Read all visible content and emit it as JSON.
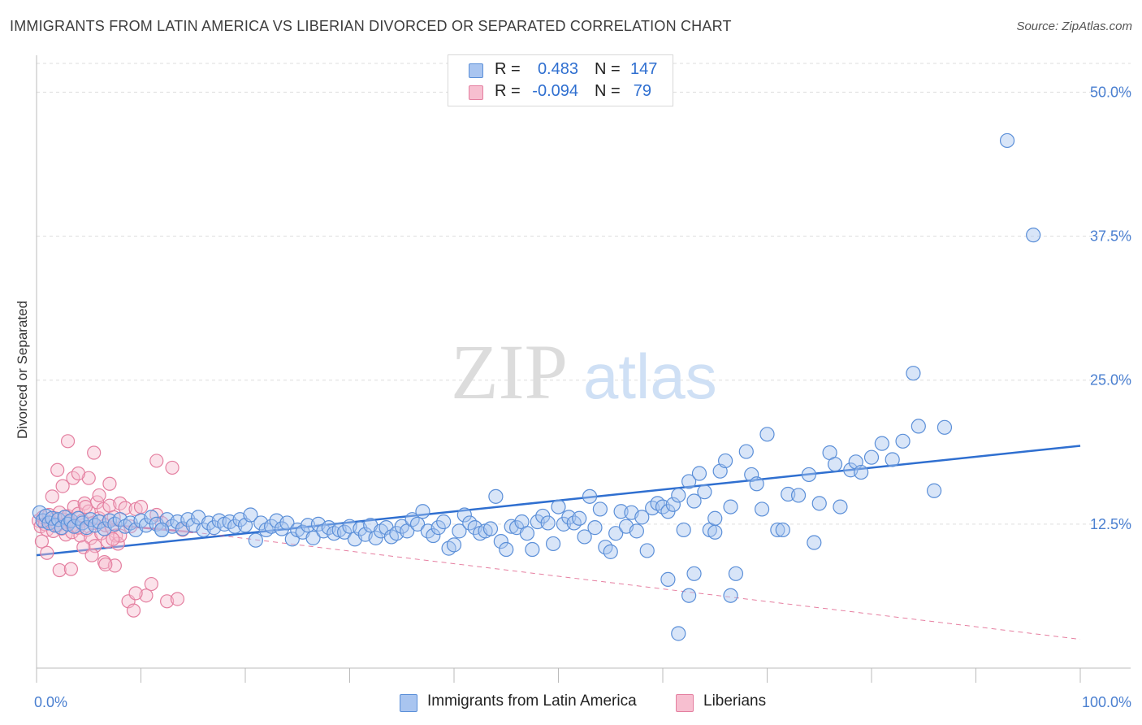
{
  "title": "IMMIGRANTS FROM LATIN AMERICA VS LIBERIAN DIVORCED OR SEPARATED CORRELATION CHART",
  "source": "Source: ZipAtlas.com",
  "watermark": {
    "zip": "ZIP",
    "atlas": "atlas"
  },
  "legend": {
    "rows": [
      {
        "r_label": "R =",
        "r_value": "0.483",
        "n_label": "N =",
        "n_value": "147",
        "color": "#a9c5f0",
        "border": "#5b8fd8"
      },
      {
        "r_label": "R =",
        "r_value": "-0.094",
        "n_label": "N =",
        "n_value": "79",
        "color": "#f7bfd0",
        "border": "#e47fa0"
      }
    ]
  },
  "bottom_legend": {
    "items": [
      {
        "label": "Immigrants from Latin America",
        "color": "#a9c5f0",
        "border": "#5b8fd8"
      },
      {
        "label": "Liberians",
        "color": "#f7bfd0",
        "border": "#e47fa0"
      }
    ]
  },
  "chart_data": {
    "type": "scatter",
    "title": "IMMIGRANTS FROM LATIN AMERICA VS LIBERIAN DIVORCED OR SEPARATED CORRELATION CHART",
    "xlabel": "",
    "ylabel": "Divorced or Separated",
    "xlim": [
      0,
      100
    ],
    "ylim": [
      0,
      52.5
    ],
    "x_ticks": [
      "0.0%",
      "100.0%"
    ],
    "y_ticks": [
      {
        "value": 12.5,
        "label": "12.5%"
      },
      {
        "value": 25.0,
        "label": "25.0%"
      },
      {
        "value": 37.5,
        "label": "37.5%"
      },
      {
        "value": 50.0,
        "label": "50.0%"
      }
    ],
    "grid": true,
    "legend_position": "top-center",
    "series": [
      {
        "name": "Immigrants from Latin America",
        "color": "#5b8fd8",
        "fill": "rgba(169,197,240,0.45)",
        "trend": {
          "x": [
            0,
            100
          ],
          "y": [
            9.8,
            19.3
          ],
          "style": "solid",
          "color": "#2f6fd0"
        },
        "points": [
          [
            0.3,
            13.5
          ],
          [
            0.6,
            12.8
          ],
          [
            0.9,
            13.2
          ],
          [
            1.2,
            12.6
          ],
          [
            1.5,
            13.0
          ],
          [
            1.8,
            12.4
          ],
          [
            2.1,
            12.9
          ],
          [
            2.4,
            12.2
          ],
          [
            2.7,
            13.1
          ],
          [
            3.0,
            12.5
          ],
          [
            3.3,
            12.8
          ],
          [
            3.6,
            12.3
          ],
          [
            4.0,
            13.0
          ],
          [
            4.4,
            12.6
          ],
          [
            4.8,
            12.2
          ],
          [
            5.2,
            12.9
          ],
          [
            5.6,
            12.4
          ],
          [
            6.0,
            12.7
          ],
          [
            6.5,
            12.1
          ],
          [
            7.0,
            12.8
          ],
          [
            7.5,
            12.5
          ],
          [
            8.0,
            12.9
          ],
          [
            8.5,
            12.3
          ],
          [
            9.0,
            12.6
          ],
          [
            9.5,
            12.0
          ],
          [
            10.0,
            12.8
          ],
          [
            10.5,
            12.4
          ],
          [
            11.0,
            13.1
          ],
          [
            11.5,
            12.5
          ],
          [
            12.0,
            12.0
          ],
          [
            12.5,
            12.9
          ],
          [
            13.0,
            12.3
          ],
          [
            13.5,
            12.7
          ],
          [
            14.0,
            12.1
          ],
          [
            14.5,
            12.9
          ],
          [
            15.0,
            12.4
          ],
          [
            15.5,
            13.1
          ],
          [
            16.0,
            12.0
          ],
          [
            16.5,
            12.6
          ],
          [
            17.0,
            12.2
          ],
          [
            17.5,
            12.8
          ],
          [
            18.0,
            12.5
          ],
          [
            18.5,
            12.7
          ],
          [
            19.0,
            12.3
          ],
          [
            19.5,
            12.9
          ],
          [
            20.0,
            12.4
          ],
          [
            20.5,
            13.3
          ],
          [
            21.0,
            11.1
          ],
          [
            21.5,
            12.6
          ],
          [
            22.0,
            12.0
          ],
          [
            22.5,
            12.3
          ],
          [
            23.0,
            12.8
          ],
          [
            23.5,
            12.1
          ],
          [
            24.0,
            12.6
          ],
          [
            24.5,
            11.2
          ],
          [
            25.0,
            12.0
          ],
          [
            25.5,
            11.8
          ],
          [
            26.0,
            12.4
          ],
          [
            26.5,
            11.3
          ],
          [
            27.0,
            12.5
          ],
          [
            27.5,
            11.9
          ],
          [
            28.0,
            12.2
          ],
          [
            28.5,
            11.7
          ],
          [
            29.0,
            12.0
          ],
          [
            29.5,
            11.8
          ],
          [
            30.0,
            12.3
          ],
          [
            30.5,
            11.2
          ],
          [
            31.0,
            12.1
          ],
          [
            31.5,
            11.6
          ],
          [
            32.0,
            12.4
          ],
          [
            32.5,
            11.3
          ],
          [
            33.0,
            11.9
          ],
          [
            33.5,
            12.2
          ],
          [
            34.0,
            11.4
          ],
          [
            34.5,
            11.7
          ],
          [
            35.0,
            12.3
          ],
          [
            35.5,
            11.9
          ],
          [
            36.0,
            12.9
          ],
          [
            36.5,
            12.5
          ],
          [
            37.0,
            13.6
          ],
          [
            37.5,
            11.9
          ],
          [
            38.0,
            11.5
          ],
          [
            38.5,
            12.2
          ],
          [
            39.0,
            12.7
          ],
          [
            39.5,
            10.4
          ],
          [
            40.0,
            10.7
          ],
          [
            40.5,
            11.9
          ],
          [
            41.0,
            13.3
          ],
          [
            41.5,
            12.6
          ],
          [
            42.0,
            12.2
          ],
          [
            42.5,
            11.7
          ],
          [
            43.0,
            11.9
          ],
          [
            43.5,
            12.1
          ],
          [
            44.0,
            14.9
          ],
          [
            44.5,
            11.0
          ],
          [
            45.0,
            10.3
          ],
          [
            45.5,
            12.3
          ],
          [
            46.0,
            12.2
          ],
          [
            46.5,
            12.7
          ],
          [
            47.0,
            11.7
          ],
          [
            47.5,
            10.3
          ],
          [
            48.0,
            12.7
          ],
          [
            48.5,
            13.2
          ],
          [
            49.0,
            12.6
          ],
          [
            49.5,
            10.8
          ],
          [
            50.0,
            14.0
          ],
          [
            50.5,
            12.5
          ],
          [
            51.0,
            13.1
          ],
          [
            51.5,
            12.6
          ],
          [
            52.0,
            13.0
          ],
          [
            52.5,
            11.4
          ],
          [
            53.0,
            14.9
          ],
          [
            53.5,
            12.2
          ],
          [
            54.0,
            13.8
          ],
          [
            54.5,
            10.5
          ],
          [
            55.0,
            10.1
          ],
          [
            55.5,
            11.7
          ],
          [
            56.0,
            13.6
          ],
          [
            56.5,
            12.3
          ],
          [
            57.0,
            13.5
          ],
          [
            57.5,
            11.9
          ],
          [
            58.0,
            13.1
          ],
          [
            58.5,
            10.2
          ],
          [
            59.0,
            13.9
          ],
          [
            59.5,
            14.3
          ],
          [
            60.0,
            14.0
          ],
          [
            60.5,
            13.6
          ],
          [
            61.0,
            14.2
          ],
          [
            61.5,
            15.0
          ],
          [
            62.0,
            12.0
          ],
          [
            62.5,
            16.2
          ],
          [
            63.0,
            14.5
          ],
          [
            63.5,
            16.9
          ],
          [
            64.0,
            15.3
          ],
          [
            64.5,
            12.0
          ],
          [
            65.0,
            13.0
          ],
          [
            65.5,
            17.1
          ],
          [
            66.0,
            18.0
          ],
          [
            66.5,
            14.0
          ],
          [
            67.0,
            8.2
          ],
          [
            68.0,
            18.8
          ],
          [
            68.5,
            16.8
          ],
          [
            69.0,
            16.0
          ],
          [
            69.5,
            13.8
          ],
          [
            70.0,
            20.3
          ],
          [
            71.0,
            12.0
          ],
          [
            72.0,
            15.1
          ],
          [
            73.0,
            15.0
          ],
          [
            74.0,
            16.8
          ],
          [
            74.5,
            10.9
          ],
          [
            75.0,
            14.3
          ],
          [
            76.0,
            18.7
          ],
          [
            76.5,
            17.7
          ],
          [
            77.0,
            14.0
          ],
          [
            78.0,
            17.2
          ],
          [
            78.5,
            17.9
          ],
          [
            79.0,
            17.0
          ],
          [
            80.0,
            18.3
          ],
          [
            81.0,
            19.5
          ],
          [
            82.0,
            18.1
          ],
          [
            83.0,
            19.7
          ],
          [
            84.0,
            25.6
          ],
          [
            84.5,
            21.0
          ],
          [
            86.0,
            15.4
          ],
          [
            87.0,
            20.9
          ],
          [
            93.0,
            45.8
          ],
          [
            95.5,
            37.6
          ],
          [
            60.5,
            7.7
          ],
          [
            62.5,
            6.3
          ],
          [
            63.0,
            8.2
          ],
          [
            66.5,
            6.3
          ],
          [
            61.5,
            3.0
          ],
          [
            12.0,
            12.0
          ],
          [
            65.0,
            11.8
          ],
          [
            71.5,
            12.0
          ]
        ]
      },
      {
        "name": "Liberians",
        "color": "#e47fa0",
        "fill": "rgba(247,191,208,0.45)",
        "trend": {
          "x": [
            0,
            15,
            100
          ],
          "y": [
            13.0,
            11.8,
            2.5
          ],
          "style": "solid-then-dashed",
          "color": "#e0608a"
        },
        "points": [
          [
            0.2,
            12.8
          ],
          [
            0.4,
            12.3
          ],
          [
            0.6,
            13.1
          ],
          [
            0.8,
            12.5
          ],
          [
            1.0,
            12.0
          ],
          [
            1.2,
            13.3
          ],
          [
            1.4,
            12.6
          ],
          [
            1.6,
            11.9
          ],
          [
            1.8,
            13.0
          ],
          [
            2.0,
            12.4
          ],
          [
            2.2,
            13.5
          ],
          [
            2.4,
            12.1
          ],
          [
            2.6,
            12.9
          ],
          [
            2.8,
            11.6
          ],
          [
            3.0,
            13.2
          ],
          [
            3.2,
            12.7
          ],
          [
            3.4,
            11.8
          ],
          [
            3.6,
            14.0
          ],
          [
            3.8,
            12.3
          ],
          [
            4.0,
            13.4
          ],
          [
            4.2,
            11.5
          ],
          [
            4.4,
            12.8
          ],
          [
            4.6,
            14.3
          ],
          [
            4.8,
            12.0
          ],
          [
            5.0,
            13.6
          ],
          [
            5.2,
            11.3
          ],
          [
            5.4,
            12.6
          ],
          [
            5.6,
            10.6
          ],
          [
            5.8,
            14.4
          ],
          [
            6.0,
            13.0
          ],
          [
            6.2,
            11.7
          ],
          [
            6.4,
            13.8
          ],
          [
            6.6,
            12.4
          ],
          [
            6.8,
            11.0
          ],
          [
            7.0,
            14.1
          ],
          [
            7.2,
            12.2
          ],
          [
            7.4,
            13.1
          ],
          [
            7.6,
            11.5
          ],
          [
            7.8,
            10.8
          ],
          [
            8.0,
            14.3
          ],
          [
            0.5,
            11.0
          ],
          [
            1.0,
            10.0
          ],
          [
            1.5,
            14.9
          ],
          [
            2.0,
            17.2
          ],
          [
            2.5,
            15.8
          ],
          [
            3.0,
            19.7
          ],
          [
            3.5,
            16.5
          ],
          [
            4.0,
            12.2
          ],
          [
            4.5,
            10.5
          ],
          [
            5.0,
            16.5
          ],
          [
            5.5,
            18.7
          ],
          [
            6.0,
            15.0
          ],
          [
            6.5,
            9.2
          ],
          [
            7.0,
            16.0
          ],
          [
            7.5,
            8.9
          ],
          [
            8.0,
            11.5
          ],
          [
            8.5,
            13.9
          ],
          [
            9.0,
            12.3
          ],
          [
            9.5,
            13.8
          ],
          [
            10.0,
            14.0
          ],
          [
            10.5,
            6.3
          ],
          [
            11.0,
            7.3
          ],
          [
            11.5,
            13.3
          ],
          [
            12.5,
            5.8
          ],
          [
            13.0,
            17.4
          ],
          [
            13.5,
            6.0
          ],
          [
            14.0,
            12.0
          ],
          [
            2.2,
            8.5
          ],
          [
            3.3,
            8.6
          ],
          [
            4.0,
            16.9
          ],
          [
            4.7,
            14.0
          ],
          [
            5.3,
            9.8
          ],
          [
            6.6,
            9.0
          ],
          [
            7.3,
            11.2
          ],
          [
            8.8,
            5.8
          ],
          [
            9.5,
            6.5
          ],
          [
            9.3,
            5.0
          ],
          [
            11.5,
            18.0
          ],
          [
            12.0,
            12.6
          ]
        ]
      }
    ]
  }
}
